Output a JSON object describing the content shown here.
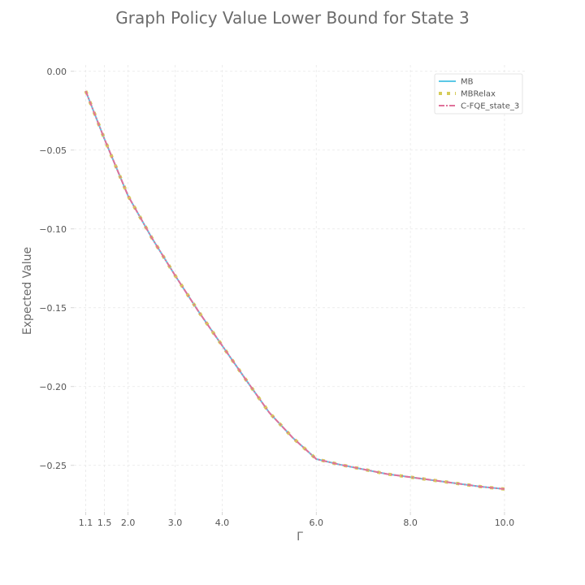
{
  "chart_data": {
    "type": "line",
    "title": "Graph Policy Value Lower Bound for State 3",
    "xlabel": "Γ",
    "ylabel": "Expected Value",
    "xlim": [
      0.85,
      10.45
    ],
    "ylim": [
      -0.2795,
      0.004
    ],
    "xticks": [
      1.1,
      1.5,
      2.0,
      3.0,
      4.0,
      6.0,
      8.0,
      10.0
    ],
    "xtick_labels": [
      "1.1",
      "1.5",
      "2.0",
      "3.0",
      "4.0",
      "6.0",
      "8.0",
      "10.0"
    ],
    "yticks": [
      0.0,
      -0.05,
      -0.1,
      -0.15,
      -0.2,
      -0.25
    ],
    "ytick_labels": [
      "0.00",
      "−0.05",
      "−0.10",
      "−0.15",
      "−0.20",
      "−0.25"
    ],
    "grid": true,
    "legend_position": "top-right",
    "x": [
      1.1,
      1.5,
      2.0,
      2.5,
      3.0,
      3.5,
      4.0,
      4.5,
      5.0,
      5.5,
      6.0,
      6.5,
      7.0,
      7.5,
      8.0,
      8.5,
      9.0,
      9.5,
      10.0
    ],
    "series": [
      {
        "name": "MB",
        "color": "#5bc8e6",
        "style": "solid",
        "values": [
          -0.0125,
          -0.043,
          -0.079,
          -0.1055,
          -0.1295,
          -0.1525,
          -0.174,
          -0.1955,
          -0.2165,
          -0.2325,
          -0.246,
          -0.2495,
          -0.2525,
          -0.2555,
          -0.2575,
          -0.2595,
          -0.2615,
          -0.2635,
          -0.265
        ]
      },
      {
        "name": "MBRelax",
        "color": "#d6cc5a",
        "style": "dotted",
        "values": [
          -0.0125,
          -0.043,
          -0.079,
          -0.1055,
          -0.1295,
          -0.1525,
          -0.174,
          -0.1955,
          -0.2165,
          -0.2325,
          -0.246,
          -0.2495,
          -0.2525,
          -0.2555,
          -0.2575,
          -0.2595,
          -0.2615,
          -0.2635,
          -0.265
        ]
      },
      {
        "name": "C-FQE_state_3",
        "color": "#e0719a",
        "style": "dashdot",
        "values": [
          -0.0125,
          -0.043,
          -0.079,
          -0.1055,
          -0.1295,
          -0.1525,
          -0.174,
          -0.1955,
          -0.2165,
          -0.2325,
          -0.246,
          -0.2495,
          -0.2525,
          -0.2555,
          -0.2575,
          -0.2595,
          -0.2615,
          -0.2635,
          -0.265
        ]
      }
    ]
  }
}
